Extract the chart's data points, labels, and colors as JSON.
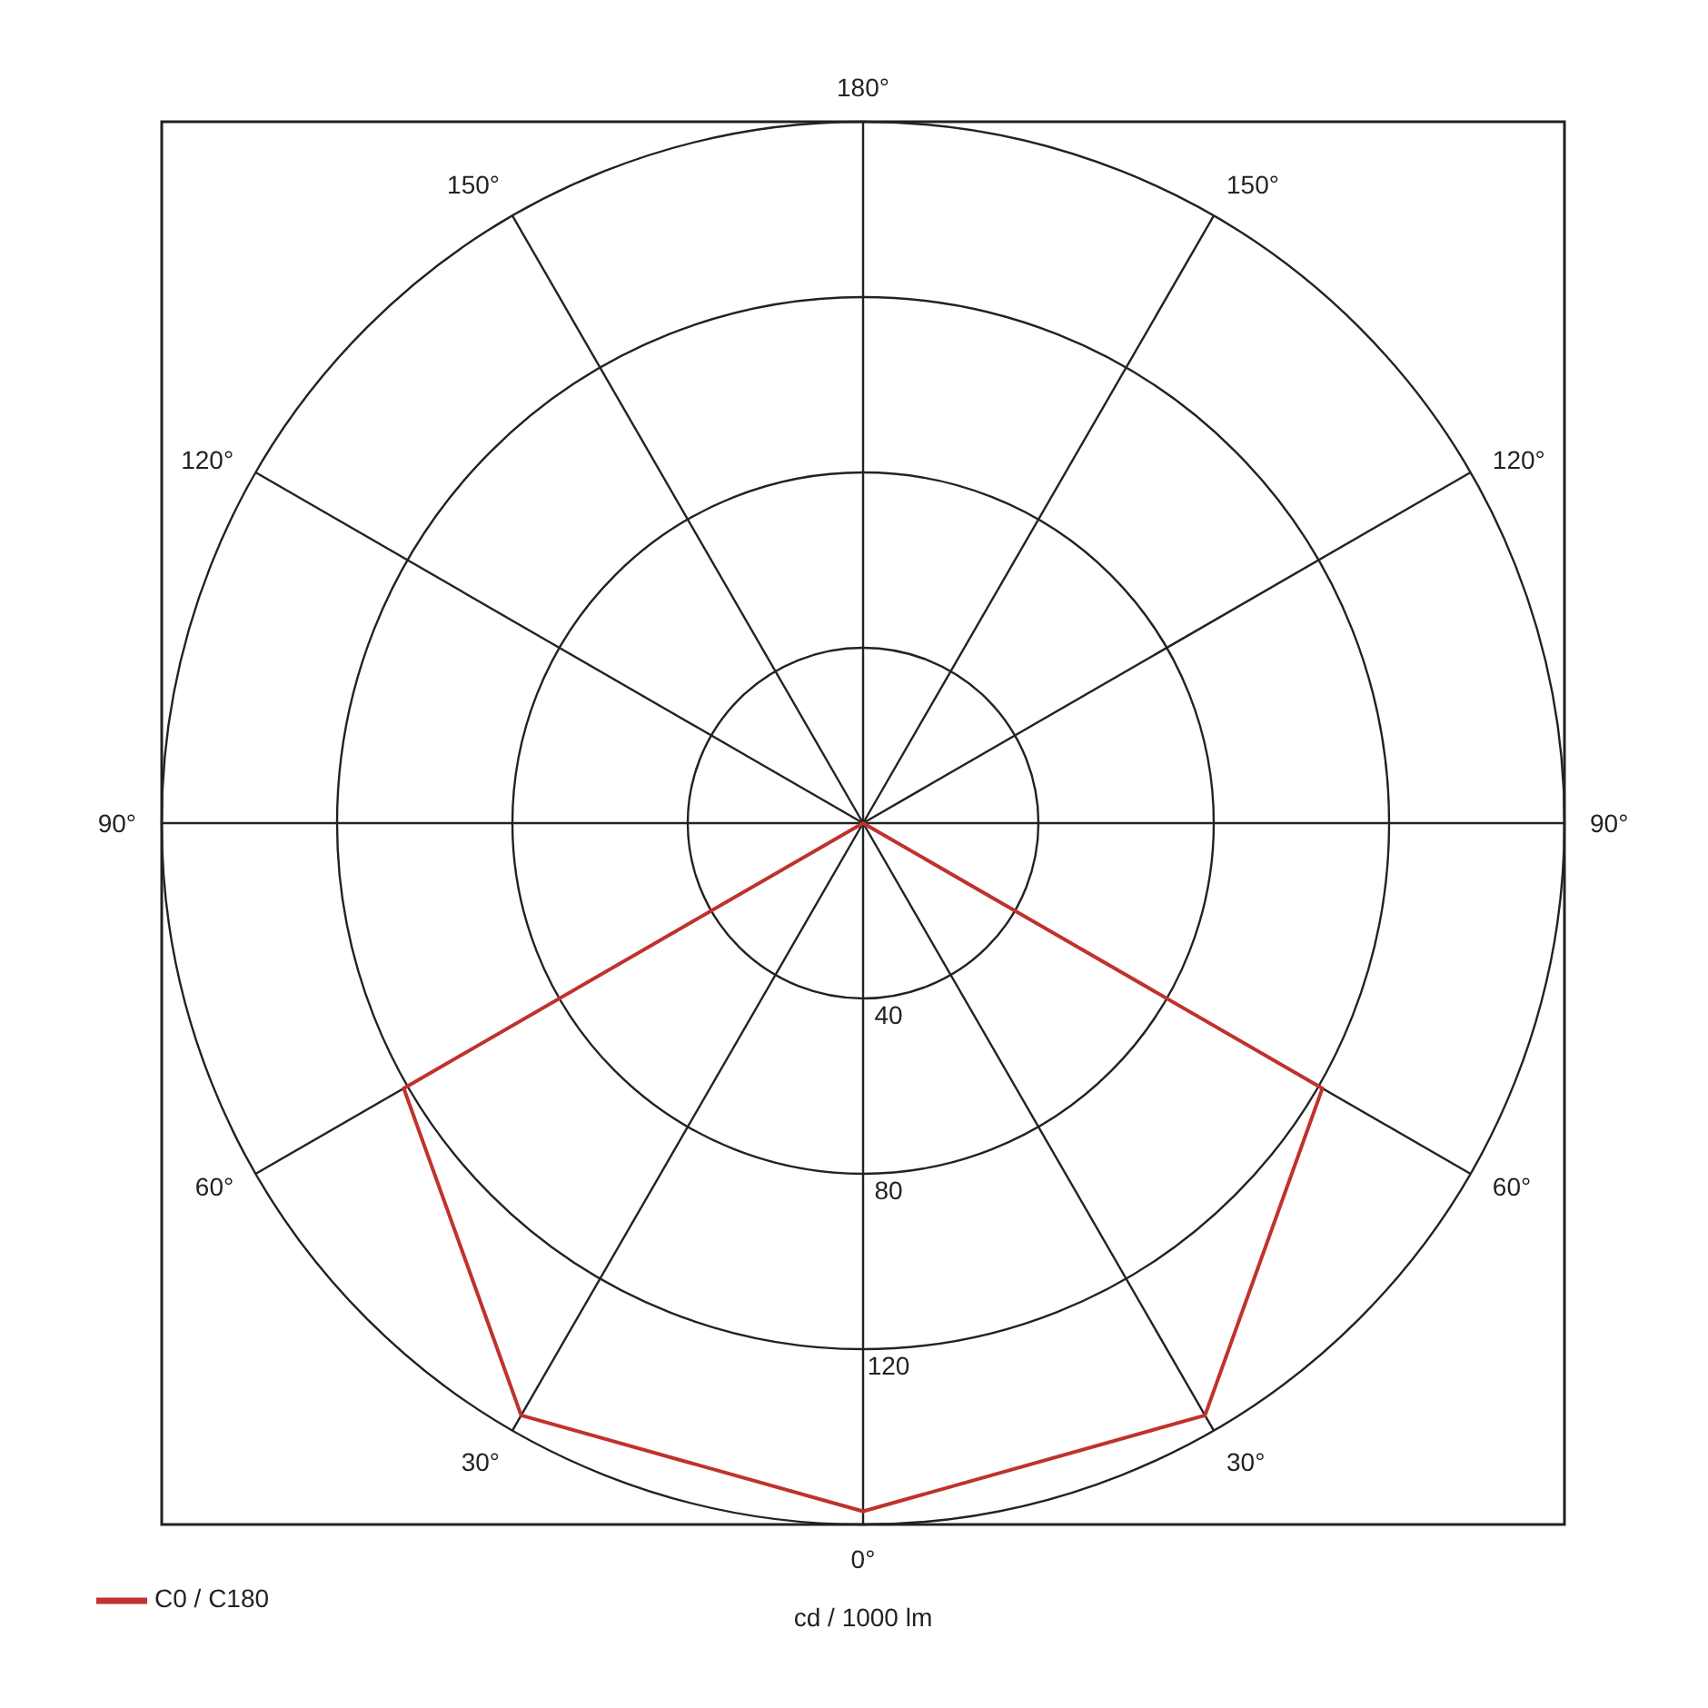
{
  "chart_data": {
    "type": "radar",
    "xlabel": "cd / 1000 lm",
    "categories": [
      "180°",
      "150°",
      "120°",
      "90°",
      "60°",
      "30°",
      "0°",
      "30°",
      "60°",
      "90°",
      "120°",
      "150°"
    ],
    "series": [
      {
        "name": "C0 / C180",
        "color": "#c0322d",
        "values": [
          0,
          0,
          0,
          0,
          121,
          156,
          157,
          156,
          121,
          0,
          0,
          0
        ]
      }
    ],
    "ylim": [
      0,
      160
    ],
    "yticks": [
      40,
      80,
      120
    ],
    "grid": true,
    "legend": "bottom left",
    "marker": "none",
    "line_style": "solid"
  }
}
